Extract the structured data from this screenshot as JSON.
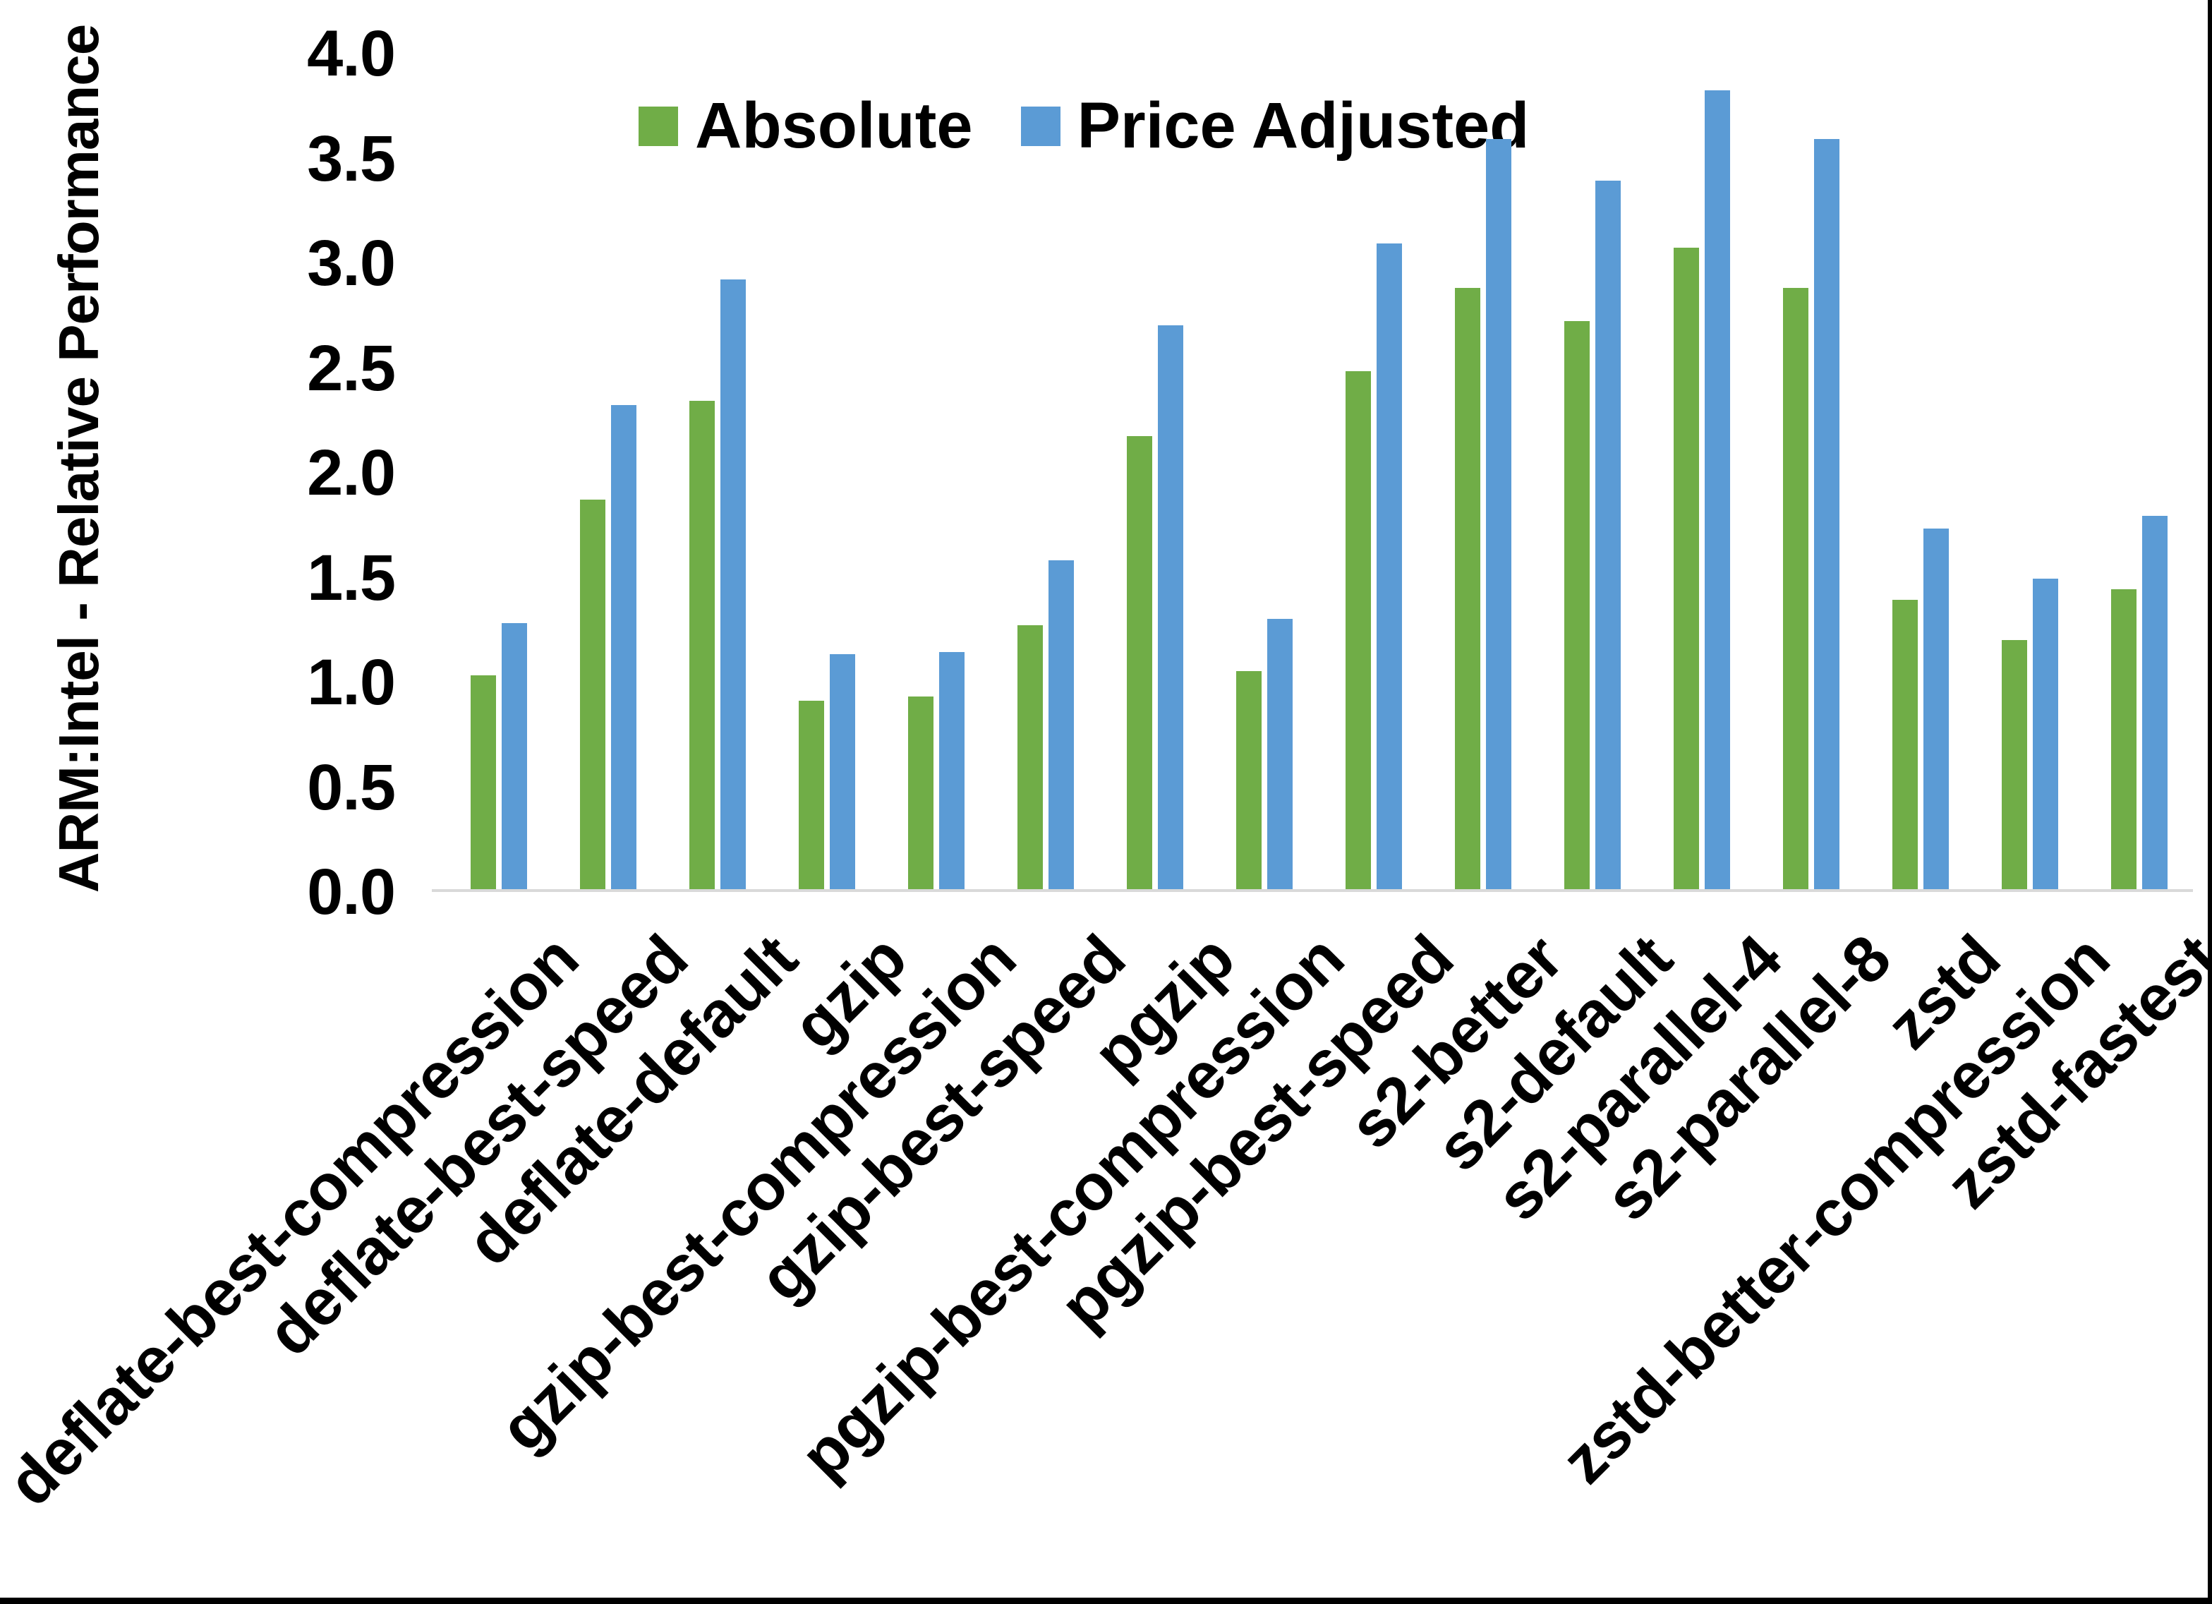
{
  "chart_data": {
    "type": "bar",
    "title": "",
    "xlabel": "",
    "ylabel": "ARM:Intel - Relative Performance",
    "ylim": [
      0.0,
      4.0
    ],
    "ytick_step": 0.5,
    "ytick_labels": [
      "0.0",
      "0.5",
      "1.0",
      "1.5",
      "2.0",
      "2.5",
      "3.0",
      "3.5",
      "4.0"
    ],
    "grid": false,
    "legend": {
      "position": "top",
      "entries": [
        "Absolute",
        "Price Adjusted"
      ]
    },
    "categories": [
      "deflate-best-compression",
      "deflate-best-speed",
      "deflate-default",
      "gzip",
      "gzip-best-compression",
      "gzip-best-speed",
      "pgzip",
      "pgzip-best-compression",
      "pgzip-best-speed",
      "s2-better",
      "s2-default",
      "s2-parallel-4",
      "s2-parallel-8",
      "zstd",
      "zstd-better-compression",
      "zstd-fastest"
    ],
    "series": [
      {
        "name": "Absolute",
        "color": "#70AD47",
        "values": [
          1.02,
          1.86,
          2.33,
          0.9,
          0.92,
          1.26,
          2.16,
          1.04,
          2.47,
          2.87,
          2.71,
          3.06,
          2.87,
          1.38,
          1.19,
          1.43
        ]
      },
      {
        "name": "Price Adjusted",
        "color": "#5B9BD5",
        "values": [
          1.27,
          2.31,
          2.91,
          1.12,
          1.13,
          1.57,
          2.69,
          1.29,
          3.08,
          3.58,
          3.38,
          3.81,
          3.58,
          1.72,
          1.48,
          1.78
        ]
      }
    ],
    "colors": {
      "axis_line": "#D9D9D9",
      "text": "#000000",
      "background": "#FFFFFF",
      "frame_border": "#000000"
    }
  }
}
